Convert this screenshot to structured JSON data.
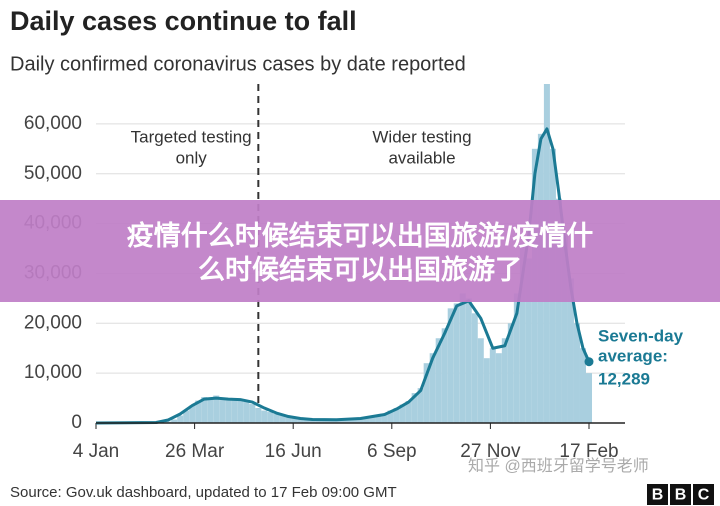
{
  "chart_data": {
    "type": "bar_line",
    "title": "Daily cases continue to fall",
    "subtitle": "Daily confirmed coronavirus cases by date reported",
    "xlim": [
      0,
      410
    ],
    "xticks": [
      {
        "value": 0,
        "label": "4 Jan"
      },
      {
        "value": 82,
        "label": "26 Mar"
      },
      {
        "value": 164,
        "label": "16 Jun"
      },
      {
        "value": 246,
        "label": "6 Sep"
      },
      {
        "value": 328,
        "label": "27 Nov"
      },
      {
        "value": 410,
        "label": "17 Feb"
      }
    ],
    "ylim": [
      0,
      68000
    ],
    "yticks": [
      0,
      {
        "value": 10000,
        "label": "10,000"
      },
      {
        "value": 20000,
        "label": "20,000"
      },
      {
        "value": 30000,
        "label": "30,000"
      },
      {
        "value": 40000,
        "label": "40,000"
      },
      {
        "value": 50000,
        "label": "50,000"
      },
      {
        "value": 60000,
        "label": "60,000"
      }
    ],
    "grid": true,
    "phase_change_x": 135,
    "annotations": [
      {
        "lines": [
          "Targeted testing",
          "only"
        ]
      },
      {
        "lines": [
          "Wider testing",
          "available"
        ]
      }
    ],
    "series": [
      {
        "type": "bar",
        "color": "#a9cfdf",
        "x": [
          0,
          5,
          10,
          15,
          20,
          25,
          30,
          35,
          40,
          45,
          50,
          55,
          60,
          65,
          70,
          75,
          80,
          85,
          90,
          95,
          100,
          105,
          110,
          115,
          120,
          125,
          130,
          135,
          140,
          145,
          150,
          155,
          160,
          165,
          170,
          175,
          180,
          185,
          190,
          195,
          200,
          205,
          210,
          215,
          220,
          225,
          230,
          235,
          240,
          245,
          250,
          255,
          260,
          265,
          270,
          275,
          280,
          285,
          290,
          295,
          300,
          305,
          310,
          315,
          320,
          325,
          330,
          335,
          340,
          345,
          350,
          355,
          360,
          365,
          370,
          375,
          380,
          385,
          390,
          395,
          400,
          405,
          410
        ],
        "values": [
          0,
          0,
          0,
          0,
          0,
          0,
          0,
          0,
          0,
          0,
          0,
          50,
          300,
          700,
          1500,
          2500,
          3500,
          4500,
          5200,
          4800,
          5500,
          4600,
          5000,
          4800,
          4600,
          4300,
          3800,
          3000,
          2500,
          2200,
          1800,
          1500,
          1200,
          1000,
          900,
          700,
          600,
          650,
          600,
          700,
          750,
          800,
          900,
          1000,
          1100,
          1000,
          1200,
          1500,
          1900,
          2500,
          3000,
          3700,
          4400,
          6000,
          7000,
          12000,
          14000,
          17000,
          19000,
          23000,
          24000,
          26000,
          25000,
          22000,
          17000,
          13000,
          15000,
          14000,
          17000,
          20000,
          26000,
          36000,
          33000,
          55000,
          58000,
          68000,
          55000,
          45000,
          38000,
          29000,
          20000,
          15000,
          10000
        ]
      },
      {
        "type": "line",
        "color": "#1b7a94",
        "label_lines": [
          "Seven-day",
          "average:"
        ],
        "x": [
          0,
          50,
          60,
          70,
          80,
          90,
          100,
          110,
          120,
          130,
          140,
          150,
          160,
          170,
          180,
          200,
          220,
          240,
          250,
          260,
          270,
          280,
          290,
          300,
          310,
          320,
          330,
          340,
          350,
          360,
          365,
          370,
          375,
          380,
          385,
          390,
          395,
          400,
          405,
          410
        ],
        "values": [
          0,
          100,
          600,
          1800,
          3500,
          4800,
          5000,
          4800,
          4700,
          4200,
          3000,
          2000,
          1300,
          900,
          700,
          650,
          900,
          1700,
          2800,
          4200,
          6500,
          13000,
          18000,
          23500,
          24500,
          21000,
          15000,
          15500,
          22000,
          38000,
          50000,
          57000,
          59000,
          55000,
          46000,
          36000,
          27000,
          20000,
          15000,
          12289
        ],
        "value_labels": [
          null,
          null,
          null,
          null,
          null,
          null,
          null,
          null,
          null,
          null,
          null,
          null,
          null,
          null,
          null,
          null,
          null,
          null,
          null,
          null,
          null,
          null,
          null,
          null,
          null,
          null,
          null,
          null,
          null,
          null,
          null,
          null,
          null,
          null,
          null,
          null,
          null,
          null,
          null,
          "12,289"
        ]
      }
    ]
  },
  "source": "Source: Gov.uk dashboard, updated to 17 Feb 09:00 GMT",
  "logo": [
    "B",
    "B",
    "C"
  ],
  "watermark": "知乎 @西班牙留学号老师",
  "banner": [
    "疫情什么时候结束可以出国旅游/疫情什",
    "么时候结束可以出国旅游了"
  ]
}
